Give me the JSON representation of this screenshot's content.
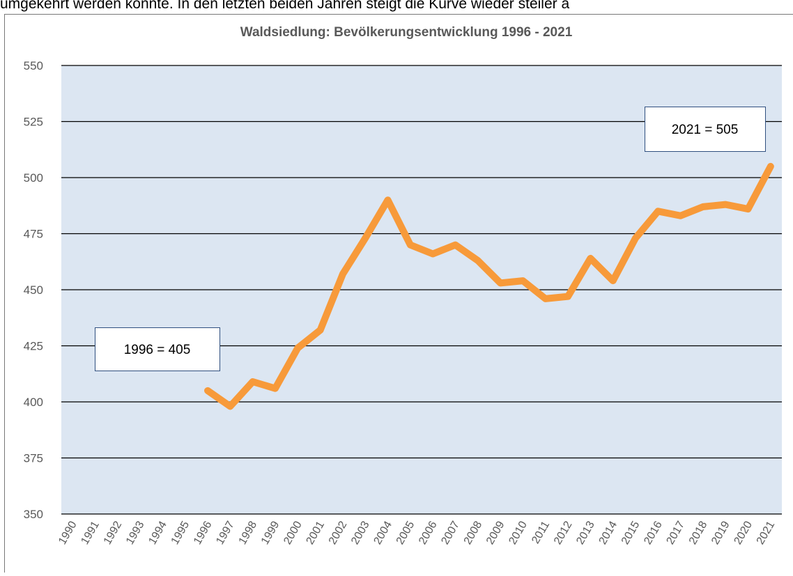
{
  "caption": "umgekehrt werden konnte. In den letzten beiden Jahren steigt die Kurve wieder steiler a",
  "chart_data": {
    "type": "line",
    "title": "Waldsiedlung: Bevölkerungsentwicklung 1996 - 2021",
    "categories": [
      "1990",
      "1991",
      "1992",
      "1993",
      "1994",
      "1995",
      "1996",
      "1997",
      "1998",
      "1999",
      "2000",
      "2001",
      "2002",
      "2003",
      "2004",
      "2005",
      "2006",
      "2007",
      "2008",
      "2009",
      "2010",
      "2011",
      "2012",
      "2013",
      "2014",
      "2015",
      "2016",
      "2017",
      "2018",
      "2019",
      "2020",
      "2021"
    ],
    "series": [
      {
        "name": "Waldsiedlung",
        "color": "#f79a3a",
        "values": [
          null,
          null,
          null,
          null,
          null,
          null,
          405,
          398,
          409,
          406,
          424,
          432,
          457,
          473,
          490,
          470,
          466,
          470,
          463,
          453,
          454,
          446,
          447,
          464,
          454,
          473,
          485,
          483,
          487,
          488,
          486,
          505
        ]
      }
    ],
    "ylim": [
      350,
      550
    ],
    "yticks": [
      350,
      375,
      400,
      425,
      450,
      475,
      500,
      525,
      550
    ],
    "grid": true,
    "annotations": [
      "1996 = 405",
      "2021 = 505"
    ]
  }
}
